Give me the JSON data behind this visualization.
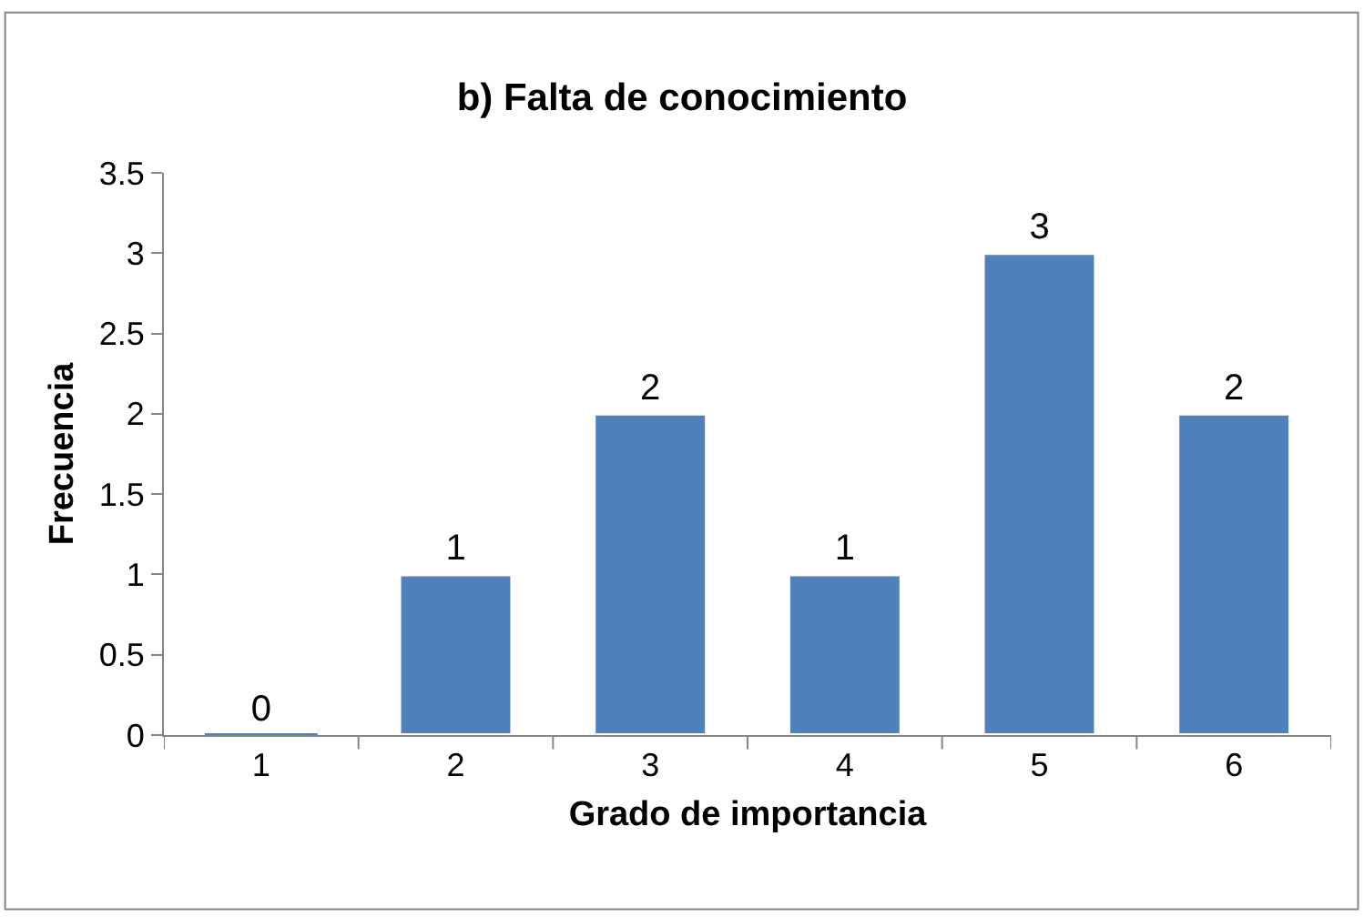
{
  "chart_data": {
    "type": "bar",
    "title": "b) Falta de conocimiento",
    "xlabel": "Grado de importancia",
    "ylabel": "Frecuencia",
    "categories": [
      "1",
      "2",
      "3",
      "4",
      "5",
      "6"
    ],
    "values": [
      0,
      1,
      2,
      1,
      3,
      2
    ],
    "color": "#4f81bd",
    "ylim": [
      0,
      3.5
    ],
    "yticks": [
      0,
      0.5,
      1,
      1.5,
      2,
      2.5,
      3,
      3.5
    ],
    "data_labels": true
  }
}
